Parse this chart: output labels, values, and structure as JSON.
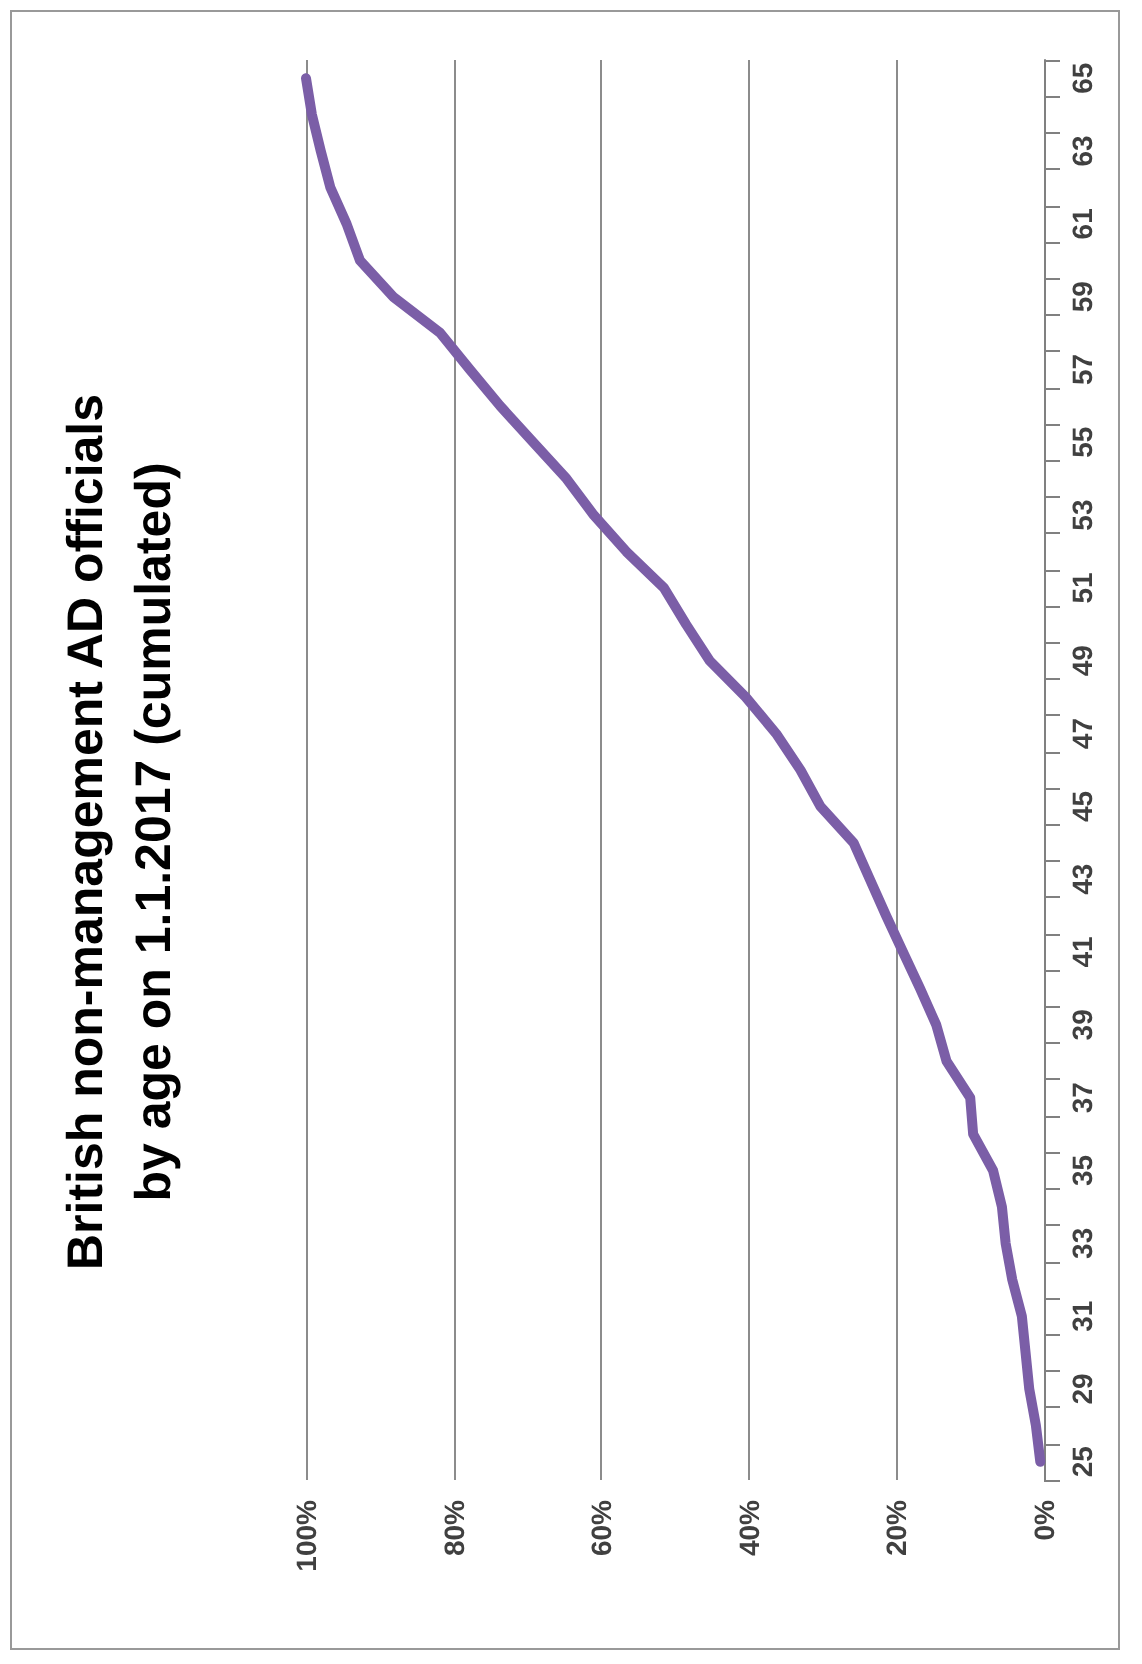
{
  "chart_data": {
    "type": "line",
    "title": "British non-management AD officials\nby age on 1.1.2017 (cumulated)",
    "orientation": "horizontal",
    "categories": [
      "65",
      null,
      "63",
      null,
      "61",
      null,
      "59",
      null,
      "57",
      null,
      "55",
      null,
      "53",
      null,
      "51",
      null,
      "49",
      null,
      "47",
      null,
      "45",
      null,
      "43",
      null,
      "41",
      null,
      "39",
      null,
      "37",
      null,
      "35",
      null,
      "33",
      null,
      "31",
      null,
      "29",
      null,
      "25"
    ],
    "series": [
      {
        "color": "#7b5ea7",
        "values": [
          100,
          99.2,
          98,
          96.7,
          94.5,
          92.7,
          88.2,
          81.8,
          77.8,
          73.7,
          69.2,
          64.7,
          61,
          56.6,
          51.5,
          48.5,
          45.3,
          40.4,
          36.3,
          33,
          30.3,
          25.8,
          23.6,
          21.4,
          19.1,
          16.8,
          14.6,
          13.2,
          10,
          9.6,
          6.9,
          5.7,
          5.2,
          4.3,
          3,
          2.5,
          2,
          1.1,
          0.5
        ]
      }
    ],
    "xlim": [
      100,
      0
    ],
    "xticks": [
      {
        "value": 100,
        "label": "100%"
      },
      {
        "value": 80,
        "label": "80%"
      },
      {
        "value": 60,
        "label": "60%"
      },
      {
        "value": 40,
        "label": "40%"
      },
      {
        "value": 20,
        "label": "20%"
      },
      {
        "value": 0,
        "label": "0%"
      }
    ],
    "grid": "x",
    "marker": "none",
    "line_style": "solid"
  }
}
